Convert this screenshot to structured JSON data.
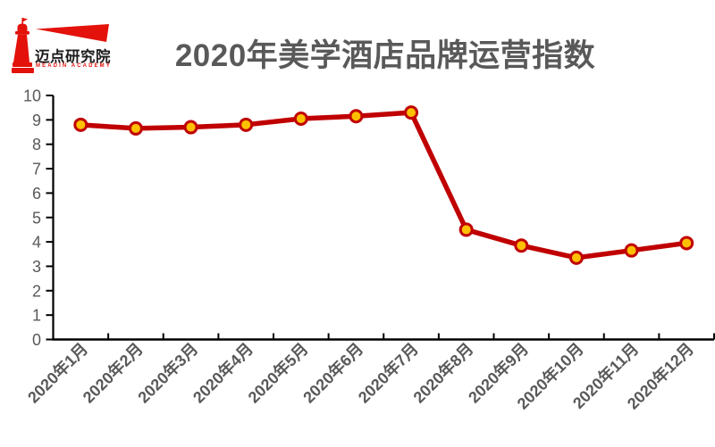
{
  "brand": {
    "logo_text_cn": "迈点研究院",
    "logo_text_en": "MEADIN ACADEMY",
    "logo_color": "#e3120b"
  },
  "title": "2020年美学酒店品牌运营指数",
  "chart_data": {
    "type": "line",
    "title": "2020年美学酒店品牌运营指数",
    "categories": [
      "2020年1月",
      "2020年2月",
      "2020年3月",
      "2020年4月",
      "2020年5月",
      "2020年6月",
      "2020年7月",
      "2020年8月",
      "2020年9月",
      "2020年10月",
      "2020年11月",
      "2020年12月"
    ],
    "values": [
      8.8,
      8.65,
      8.7,
      8.8,
      9.05,
      9.15,
      9.3,
      4.5,
      3.85,
      3.35,
      3.65,
      3.95
    ],
    "xlabel": "",
    "ylabel": "",
    "ylim": [
      0,
      10
    ],
    "ytick_step": 1,
    "yticks": [
      0,
      1,
      2,
      3,
      4,
      5,
      6,
      7,
      8,
      9,
      10
    ],
    "grid": false,
    "legend": "none",
    "line_color": "#c00000",
    "marker_fill": "#ffc000",
    "marker_stroke": "#c00000",
    "axis_color": "#000000",
    "tick_label_color": "#595959"
  }
}
